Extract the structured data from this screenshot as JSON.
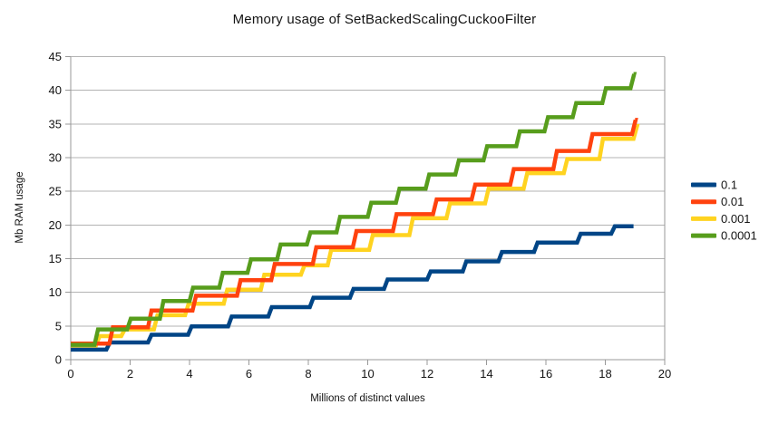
{
  "window": {
    "background": "#ffffff"
  },
  "chart_data": {
    "type": "line",
    "subtype": "stepped",
    "title": "Memory usage of SetBackedScalingCuckooFilter",
    "xlabel": "Millions of distinct values",
    "ylabel": "Mb RAM usage",
    "xlim": [
      0,
      20
    ],
    "ylim": [
      0,
      45
    ],
    "x_ticks": [
      0,
      2,
      4,
      6,
      8,
      10,
      12,
      14,
      16,
      18,
      20
    ],
    "y_ticks": [
      0,
      5,
      10,
      15,
      20,
      25,
      30,
      35,
      40,
      45
    ],
    "grid": "horizontal",
    "grid_color": "#b3b3b3",
    "axis_color": "#999999",
    "legend_position": "right",
    "series": [
      {
        "name": "0.1",
        "color": "#004586",
        "z": 0,
        "end_x": 18.95,
        "steps": [
          [
            0,
            1.5
          ],
          [
            1.2,
            2.55
          ],
          [
            2.6,
            3.7
          ],
          [
            3.95,
            4.95
          ],
          [
            5.3,
            6.4
          ],
          [
            6.65,
            7.8
          ],
          [
            8.05,
            9.2
          ],
          [
            9.4,
            10.5
          ],
          [
            10.55,
            11.9
          ],
          [
            12.0,
            13.1
          ],
          [
            13.2,
            14.6
          ],
          [
            14.4,
            16.0
          ],
          [
            15.6,
            17.4
          ],
          [
            17.05,
            18.7
          ],
          [
            18.2,
            19.8
          ]
        ]
      },
      {
        "name": "0.01",
        "color": "#ff420e",
        "z": 2,
        "end_x": 19.0,
        "steps": [
          [
            0,
            2.4
          ],
          [
            1.3,
            4.8
          ],
          [
            2.6,
            7.3
          ],
          [
            4.1,
            9.5
          ],
          [
            5.6,
            11.8
          ],
          [
            6.75,
            14.2
          ],
          [
            8.15,
            16.7
          ],
          [
            9.5,
            19.1
          ],
          [
            10.85,
            21.6
          ],
          [
            12.2,
            23.8
          ],
          [
            13.5,
            26.0
          ],
          [
            14.8,
            28.3
          ],
          [
            16.25,
            31.0
          ],
          [
            17.45,
            33.5
          ],
          [
            18.9,
            35.6
          ]
        ]
      },
      {
        "name": "0.001",
        "color": "#ffd320",
        "z": 1,
        "end_x": 19.05,
        "steps": [
          [
            0,
            2.1
          ],
          [
            0.85,
            3.5
          ],
          [
            1.7,
            4.5
          ],
          [
            2.8,
            6.6
          ],
          [
            3.85,
            8.3
          ],
          [
            5.15,
            10.4
          ],
          [
            6.4,
            12.6
          ],
          [
            7.75,
            14.0
          ],
          [
            8.65,
            16.3
          ],
          [
            10.05,
            18.5
          ],
          [
            11.4,
            21.0
          ],
          [
            12.65,
            23.2
          ],
          [
            13.95,
            25.4
          ],
          [
            15.25,
            27.7
          ],
          [
            16.6,
            29.8
          ],
          [
            17.8,
            32.8
          ],
          [
            18.95,
            34.7
          ]
        ]
      },
      {
        "name": "0.0001",
        "color": "#579d1c",
        "z": 3,
        "end_x": 18.95,
        "steps": [
          [
            0,
            2.2
          ],
          [
            0.8,
            4.5
          ],
          [
            1.9,
            6.1
          ],
          [
            3.0,
            8.7
          ],
          [
            4.0,
            10.7
          ],
          [
            5.0,
            12.9
          ],
          [
            5.95,
            14.9
          ],
          [
            6.95,
            17.1
          ],
          [
            7.95,
            18.9
          ],
          [
            8.95,
            21.2
          ],
          [
            10.0,
            23.3
          ],
          [
            10.95,
            25.4
          ],
          [
            11.95,
            27.5
          ],
          [
            12.95,
            29.6
          ],
          [
            13.9,
            31.7
          ],
          [
            15.0,
            33.9
          ],
          [
            15.95,
            36.0
          ],
          [
            16.9,
            38.1
          ],
          [
            17.9,
            40.3
          ],
          [
            18.85,
            42.4
          ]
        ]
      }
    ]
  }
}
